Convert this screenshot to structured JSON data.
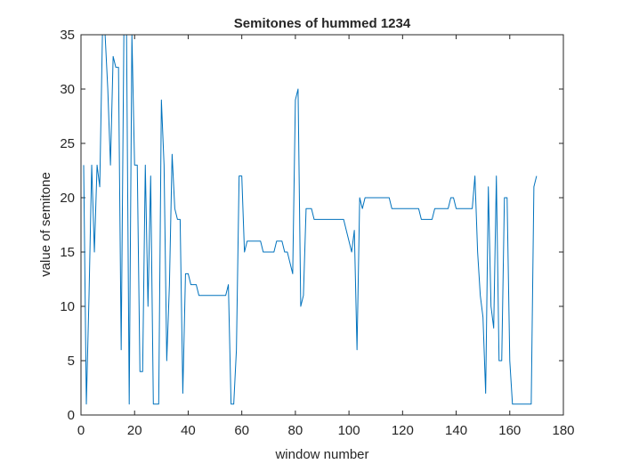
{
  "chart_data": {
    "type": "line",
    "title": "Semitones of hummed 1234",
    "xlabel": "window number",
    "ylabel": "value of semitone",
    "xlim": [
      0,
      180
    ],
    "ylim": [
      0,
      35
    ],
    "xticks": [
      0,
      20,
      40,
      60,
      80,
      100,
      120,
      140,
      160,
      180
    ],
    "yticks": [
      0,
      5,
      10,
      15,
      20,
      25,
      30,
      35
    ],
    "grid": false,
    "line_color": "#0072BD",
    "series": [
      {
        "x": [
          1,
          2,
          3,
          4,
          5,
          6,
          7,
          8,
          9,
          10,
          11,
          12,
          13,
          14,
          15,
          16,
          17,
          18,
          19,
          20,
          21,
          22,
          23,
          24,
          25,
          26,
          27,
          28,
          29,
          30,
          31,
          32,
          33,
          34,
          35,
          36,
          37,
          38,
          39,
          40,
          41,
          42,
          43,
          44,
          45,
          46,
          47,
          48,
          49,
          50,
          51,
          52,
          53,
          54,
          55,
          56,
          57,
          58,
          59,
          60,
          61,
          62,
          63,
          64,
          65,
          66,
          67,
          68,
          69,
          70,
          71,
          72,
          73,
          74,
          75,
          76,
          77,
          78,
          79,
          80,
          81,
          82,
          83,
          84,
          85,
          86,
          87,
          88,
          89,
          90,
          91,
          92,
          93,
          94,
          95,
          96,
          97,
          98,
          99,
          100,
          101,
          102,
          103,
          104,
          105,
          106,
          107,
          108,
          109,
          110,
          111,
          112,
          113,
          114,
          115,
          116,
          117,
          118,
          119,
          120,
          121,
          122,
          123,
          124,
          125,
          126,
          127,
          128,
          129,
          130,
          131,
          132,
          133,
          134,
          135,
          136,
          137,
          138,
          139,
          140,
          141,
          142,
          143,
          144,
          145,
          146,
          147,
          148,
          149,
          150,
          151,
          152,
          153,
          154,
          155,
          156,
          157,
          158,
          159,
          160,
          161,
          162,
          163,
          164,
          165,
          166,
          167,
          168,
          169,
          170
        ],
        "y": [
          23,
          1,
          11,
          23,
          15,
          23,
          21,
          35,
          35,
          30,
          23,
          33,
          32,
          32,
          6,
          35,
          35,
          1,
          35,
          23,
          23,
          4,
          4,
          23,
          10,
          22,
          1,
          1,
          1,
          29,
          23,
          5,
          12,
          24,
          19,
          18,
          18,
          2,
          13,
          13,
          12,
          12,
          12,
          11,
          11,
          11,
          11,
          11,
          11,
          11,
          11,
          11,
          11,
          11,
          12,
          1,
          1,
          6,
          22,
          22,
          15,
          16,
          16,
          16,
          16,
          16,
          16,
          15,
          15,
          15,
          15,
          15,
          16,
          16,
          16,
          15,
          15,
          14,
          13,
          29,
          30,
          10,
          11,
          19,
          19,
          19,
          18,
          18,
          18,
          18,
          18,
          18,
          18,
          18,
          18,
          18,
          18,
          18,
          17,
          16,
          15,
          17,
          6,
          20,
          19,
          20,
          20,
          20,
          20,
          20,
          20,
          20,
          20,
          20,
          20,
          19,
          19,
          19,
          19,
          19,
          19,
          19,
          19,
          19,
          19,
          19,
          18,
          18,
          18,
          18,
          18,
          19,
          19,
          19,
          19,
          19,
          19,
          20,
          20,
          19,
          19,
          19,
          19,
          19,
          19,
          19,
          22,
          15,
          11,
          9,
          2,
          21,
          10,
          8,
          22,
          5,
          5,
          20,
          20,
          5,
          1,
          1,
          1,
          1,
          1,
          1,
          1,
          1,
          21,
          22
        ]
      }
    ]
  }
}
